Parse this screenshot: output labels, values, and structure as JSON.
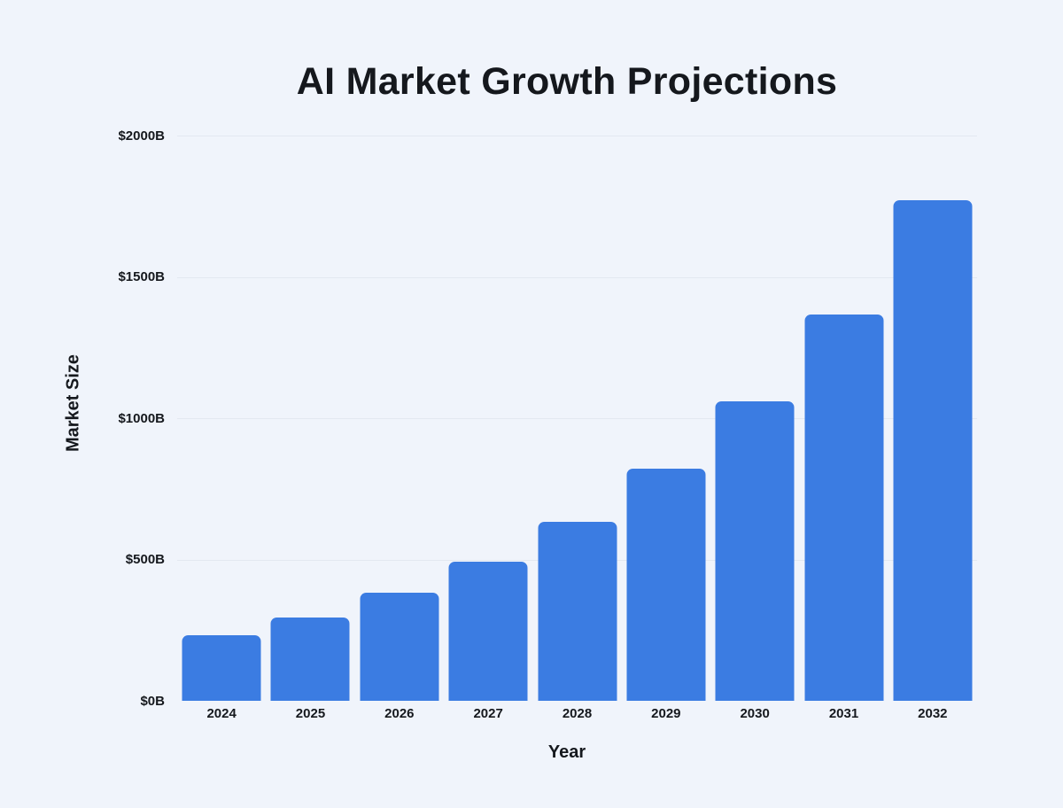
{
  "chart_data": {
    "type": "bar",
    "title": "AI Market Growth Projections",
    "xlabel": "Year",
    "ylabel": "Market Size",
    "categories": [
      "2024",
      "2025",
      "2026",
      "2027",
      "2028",
      "2029",
      "2030",
      "2031",
      "2032"
    ],
    "values": [
      233,
      294,
      381,
      491,
      634,
      820,
      1059,
      1368,
      1772
    ],
    "values_unit": "$B",
    "ylim": [
      0,
      2000
    ],
    "y_ticks": [
      {
        "value": 0,
        "label": "$0B"
      },
      {
        "value": 500,
        "label": "$500B"
      },
      {
        "value": 1000,
        "label": "$1000B"
      },
      {
        "value": 1500,
        "label": "$1500B"
      },
      {
        "value": 2000,
        "label": "$2000B"
      }
    ],
    "grid": true,
    "legend_position": "none",
    "colors": {
      "background": "#f0f4fb",
      "bar": "#3b7ce2",
      "gridline": "#e3e8f1",
      "text": "#15181d"
    }
  }
}
